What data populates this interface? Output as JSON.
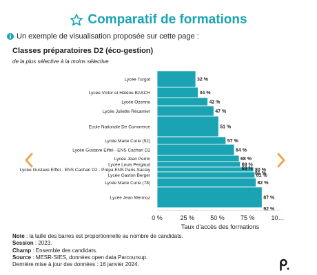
{
  "header": {
    "title": "Comparatif de formations",
    "title_icon": "star-outline-icon",
    "accent_color": "#1aa4b3"
  },
  "info": {
    "icon": "info-icon",
    "text": "Un exemple de visualisation proposée sur cette page :"
  },
  "chart_data": {
    "type": "bar",
    "orientation": "horizontal",
    "title": "Classes préparatoires D2 (éco-gestion)",
    "subtitle": "de la plus sélective à la moins sélective",
    "xlabel": "Taux d'accès des formations",
    "ylabel": "",
    "xlim": [
      0,
      100
    ],
    "x_tick_labels": [
      "0 %",
      "25 %",
      "50 %",
      "75 %",
      "10…"
    ],
    "grid": false,
    "bar_color": "#1aa4b3",
    "bar_width_note": "proportional to number of candidates",
    "categories": [
      "Lycée Turgot",
      "Lycée Victor et Hélène BASCH",
      "Lycée Ozenne",
      "Lycée Juliette Récamier",
      "Ecole Nationale De Commerce",
      "Lycée Marie Curie (92)",
      "Lycée Gustave Eiffel - ENS Cachan D2",
      "Lycée Jean Perrin",
      "Lycée Louis Pergaud",
      "Lycée Gustave Eiffel - ENS Cachan D2 - Prépa ENS Paris-Saclay",
      "Lycée Gaston Berger",
      "Lycée Marie Curie (78)",
      "Lycée Jean Mermoz"
    ],
    "values": [
      32,
      34,
      42,
      47,
      51,
      57,
      64,
      68,
      69,
      80,
      81,
      82,
      87
    ],
    "data_labels": [
      "32 %",
      "34 %",
      "42 %",
      "47 %",
      "51 %",
      "57 %",
      "64 %",
      "68 %",
      "69 %",
      "80 %",
      "81 %",
      "82 %",
      "87 %"
    ],
    "extra_value_labels": [
      {
        "text": "69 %",
        "after_bar_index": 8
      },
      {
        "text": "81 %",
        "after_bar_index": 9
      },
      {
        "text": "92 %",
        "after_bar_index": 12
      }
    ]
  },
  "navigation": {
    "prev_icon": "chevron-left-icon",
    "next_icon": "chevron-right-icon",
    "color": "#f0a64a"
  },
  "notes": {
    "note_label": "Note",
    "note_text": " : la taille des barres est proportionnelle au nombre de candidats.",
    "session_label": "Session",
    "session_text": " : 2023.",
    "champ_label": "Champ",
    "champ_text": " : Ensemble des candidats.",
    "source_label": "Source",
    "source_text": " : MESR-SIES, données open data Parcoursup.",
    "update_text": "Dernière mise à jour des données : 16 janvier 2024."
  },
  "footer": {
    "logo_icon": "parcoursup-logo-icon"
  }
}
